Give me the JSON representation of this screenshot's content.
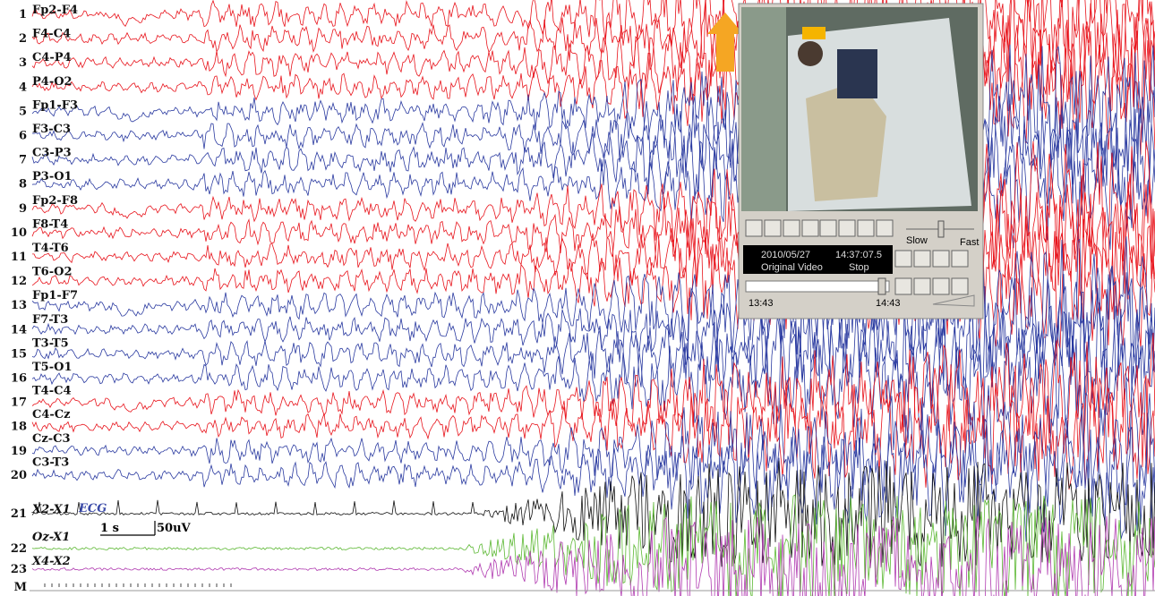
{
  "channels": {
    "numbers": [
      "1",
      "2",
      "3",
      "4",
      "5",
      "6",
      "7",
      "8",
      "9",
      "10",
      "11",
      "12",
      "13",
      "14",
      "15",
      "16",
      "17",
      "18",
      "19",
      "20",
      "21",
      "22",
      "23",
      "M"
    ],
    "labels": [
      "Fp2-F4",
      "F4-C4",
      "C4-P4",
      "P4-O2",
      "Fp1-F3",
      "F3-C3",
      "C3-P3",
      "P3-O1",
      "Fp2-F8",
      "F8-T4",
      "T4-T6",
      "T6-O2",
      "Fp1-F7",
      "F7-T3",
      "T3-T5",
      "T5-O1",
      "T4-C4",
      "C4-Cz",
      "Cz-C3",
      "C3-T3",
      "X2-X1",
      "Oz-X1",
      "X4-X2"
    ]
  },
  "ecg_label": "ECG",
  "scale": {
    "time": "1 s",
    "amplitude": "50uV"
  },
  "video_player": {
    "date": "2010/05/27",
    "time": "14:37:07.5",
    "source": "Original Video",
    "status": "Stop",
    "speed_min": "Slow",
    "speed_max": "Fast",
    "range_start": "13:43",
    "range_end": "14:43"
  }
}
